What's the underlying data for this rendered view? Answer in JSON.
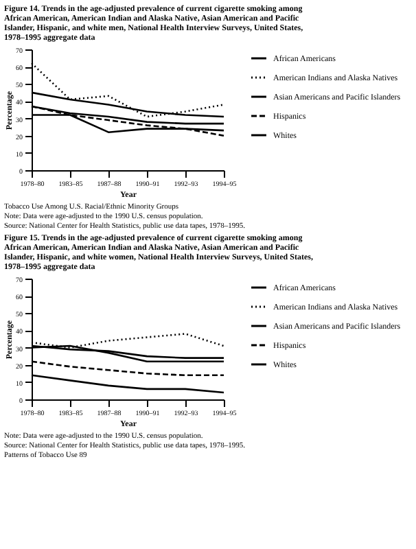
{
  "chart_data": [
    {
      "type": "line",
      "title": "Figure 14. Trends in the age-adjusted prevalence of current cigarette smoking among African American, American Indian and Alaska Native, Asian American and Pacific Islander, Hispanic, and white men, National Health Interview Surveys, United States, 1978–1995 aggregate data",
      "xlabel": "Year",
      "ylabel": "Percentage",
      "categories": [
        "1978–80",
        "1983–85",
        "1987–88",
        "1990–91",
        "1992–93",
        "1994–95"
      ],
      "ylim": [
        0,
        70
      ],
      "yticks": [
        0,
        10,
        20,
        30,
        40,
        50,
        60,
        70
      ],
      "legend": "right",
      "series": [
        {
          "name": "African Americans",
          "color": "#000000",
          "line_style": "solid",
          "values": [
            45,
            41,
            38,
            34,
            32,
            31
          ]
        },
        {
          "name": "American Indians and Alaska Natives",
          "color": "#000000",
          "line_style": "dotted",
          "values": [
            62,
            41,
            43,
            31,
            34,
            38
          ]
        },
        {
          "name": "Asian Americans and Pacific Islanders",
          "color": "#000000",
          "line_style": "solid",
          "values": [
            32,
            32,
            22,
            24,
            24,
            23
          ]
        },
        {
          "name": "Hispanics",
          "color": "#000000",
          "line_style": "dashed",
          "values": [
            37,
            32,
            29,
            26,
            24,
            20
          ]
        },
        {
          "name": "Whites",
          "color": "#000000",
          "line_style": "solid",
          "values": [
            37,
            33,
            31,
            28,
            27,
            27
          ]
        }
      ],
      "annotations": [
        "Tobacco Use Among U.S. Racial/Ethnic Minority Groups",
        "Note: Data were age-adjusted to the 1990 U.S. census population.",
        "Source: National Center for Health Statistics, public use data tapes, 1978–1995."
      ]
    },
    {
      "type": "line",
      "title": "Figure 15. Trends in the age-adjusted prevalence of current cigarette smoking among African American, American Indian and Alaska Native, Asian American and Pacific Islander, Hispanic, and white women, National Health Interview Surveys, United States, 1978–1995 aggregate data",
      "xlabel": "Year",
      "ylabel": "Percentage",
      "categories": [
        "1978–80",
        "1983–85",
        "1987–88",
        "1990–91",
        "1992–93",
        "1994–95"
      ],
      "ylim": [
        0,
        70
      ],
      "yticks": [
        0,
        10,
        20,
        30,
        40,
        50,
        60,
        70
      ],
      "legend": "right",
      "series": [
        {
          "name": "African Americans",
          "color": "#000000",
          "line_style": "solid",
          "values": [
            30,
            31,
            27,
            22,
            22,
            22
          ]
        },
        {
          "name": "American Indians and Alaska Natives",
          "color": "#000000",
          "line_style": "dotted",
          "values": [
            33,
            30,
            34,
            36,
            38,
            31
          ]
        },
        {
          "name": "Asian Americans and Pacific Islanders",
          "color": "#000000",
          "line_style": "solid",
          "values": [
            14,
            11,
            8,
            6,
            6,
            4
          ]
        },
        {
          "name": "Hispanics",
          "color": "#000000",
          "line_style": "dashed",
          "values": [
            22,
            19,
            17,
            15,
            14,
            14
          ]
        },
        {
          "name": "Whites",
          "color": "#000000",
          "line_style": "solid",
          "values": [
            31,
            29,
            28,
            25,
            24,
            24
          ]
        }
      ],
      "annotations": [
        "Note: Data were age-adjusted to the 1990 U.S. census population.",
        "Source: National Center for Health Statistics, public use data tapes, 1978–1995.",
        "Patterns of Tobacco Use 89"
      ]
    }
  ]
}
